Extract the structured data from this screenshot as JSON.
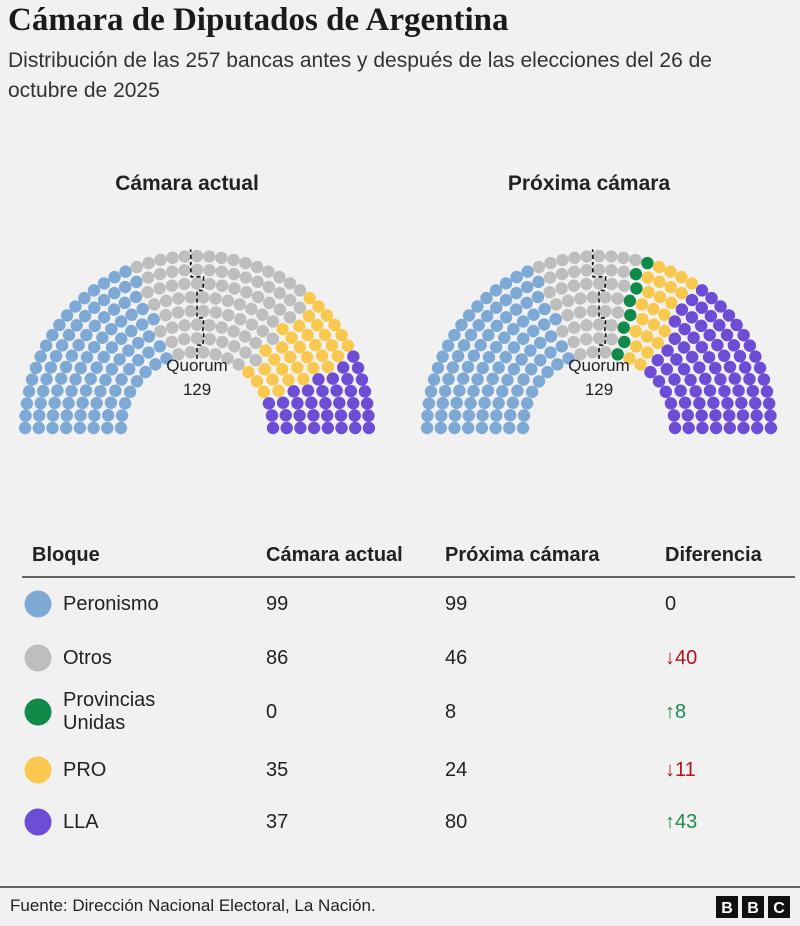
{
  "title": "Cámara de Diputados de Argentina",
  "subtitle": "Distribución de las 257 bancas antes y después de las elecciones del 26 de octubre de 2025",
  "chart_data": [
    {
      "type": "parliament",
      "title": "Cámara actual",
      "categories": [
        "Peronismo",
        "Otros",
        "Provincias Unidas",
        "PRO",
        "LLA"
      ],
      "colors": [
        "#7ea9d5",
        "#bebebe",
        "#108a48",
        "#f8c94e",
        "#6e4dd6"
      ],
      "values": [
        99,
        86,
        0,
        35,
        37
      ],
      "quorum": 129,
      "quorum_label": "Quorum"
    },
    {
      "type": "parliament",
      "title": "Próxima cámara",
      "categories": [
        "Peronismo",
        "Otros",
        "Provincias Unidas",
        "PRO",
        "LLA"
      ],
      "colors": [
        "#7ea9d5",
        "#bebebe",
        "#108a48",
        "#f8c94e",
        "#6e4dd6"
      ],
      "values": [
        99,
        46,
        8,
        24,
        80
      ],
      "quorum": 129,
      "quorum_label": "Quorum"
    }
  ],
  "table": {
    "columns": [
      "Bloque",
      "Diferencia"
    ],
    "differences": [
      0,
      {
        "value": -40,
        "label": "↓40"
      },
      {
        "value": 8,
        "label": "↑8"
      },
      {
        "value": -11,
        "label": "↓11"
      },
      {
        "value": 43,
        "label": "↑43"
      }
    ]
  },
  "source": "Fuente: Dirección Nacional Electoral, La Nación.",
  "logo": [
    "B",
    "B",
    "C"
  ]
}
